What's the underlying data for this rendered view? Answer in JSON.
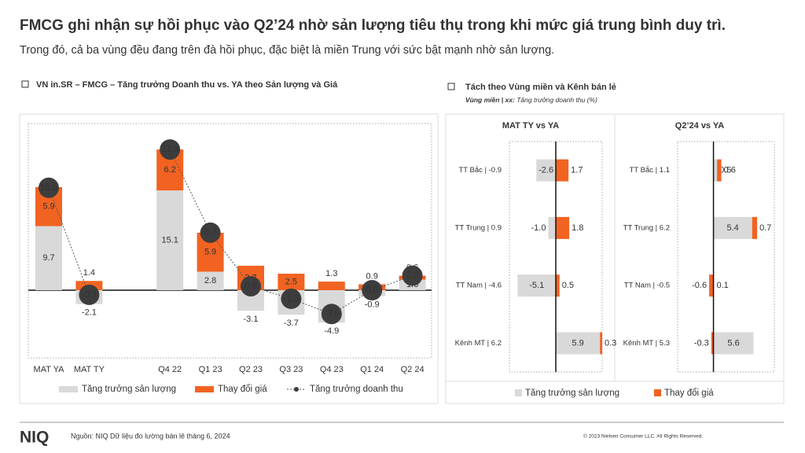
{
  "header": {
    "title": "FMCG ghi nhận sự hồi phục vào Q2’24 nhờ sản lượng tiêu thụ trong khi mức giá trung bình duy trì.",
    "subtitle": "Trong đó, cả ba vùng đều đang trên đà hồi phục, đặc biệt là miền Trung với sức bật mạnh nhờ sản lượng."
  },
  "left_section": {
    "title": "VN in.SR – FMCG – Tăng trưởng Doanh thu vs. YA theo Sản lượng và Giá"
  },
  "right_section": {
    "title": "Tách theo Vùng miền và Kênh bán lẻ",
    "note_label": "Vùng miền | xx:",
    "note_text": "Tăng trưởng doanh thu (%)"
  },
  "chart_data": [
    {
      "type": "bar",
      "stacked": true,
      "ylim": [
        -10,
        25
      ],
      "categories": [
        "MAT YA",
        "MAT TY",
        null,
        "Q4 22",
        "Q1 23",
        "Q2 23",
        "Q3 23",
        "Q4 23",
        "Q1 24",
        "Q2 24"
      ],
      "series": [
        {
          "name": "Tăng trưởng sản lượng",
          "color": "#d9d9d9",
          "values": [
            9.7,
            -2.1,
            null,
            15.1,
            2.8,
            -3.1,
            -3.7,
            -4.9,
            -0.9,
            1.6
          ]
        },
        {
          "name": "Thay đổi giá",
          "color": "#f26322",
          "values": [
            5.9,
            1.4,
            null,
            6.2,
            5.9,
            3.7,
            2.5,
            1.3,
            0.9,
            0.6
          ]
        },
        {
          "name": "Tăng trưởng doanh thu",
          "color": "#3d3d3d",
          "type": "line",
          "values": [
            15.5,
            -0.7,
            null,
            21.3,
            8.7,
            0.6,
            -1.3,
            -3.6,
            0.0,
            2.2
          ],
          "value_labels": [
            "15.5",
            "-0.7",
            null,
            "21.3",
            "8.7",
            "0.6",
            "-1.3",
            "-3.6",
            "0.0",
            "2.2"
          ]
        }
      ]
    },
    {
      "type": "hbar",
      "stacked": true,
      "title": "MAT TY vs YA",
      "xlim": [
        -6.2,
        6.2
      ],
      "categories": [
        "TT Bắc | -0.9",
        "TT Trung | 0.9",
        "TT Nam | -4.6",
        "Kênh MT | 6.2"
      ],
      "series": [
        {
          "name": "Tăng trưởng sản lượng",
          "color": "#d9d9d9",
          "values": [
            -2.6,
            -1.0,
            -5.1,
            5.9
          ],
          "value_labels": [
            "-2.6",
            "-1.0",
            "-5.1",
            "5.9"
          ]
        },
        {
          "name": "Thay đổi giá",
          "color": "#f26322",
          "values": [
            1.7,
            1.8,
            0.5,
            0.3
          ]
        }
      ]
    },
    {
      "type": "hbar",
      "stacked": true,
      "title": "Q2’24 vs YA",
      "xlim": [
        -5,
        8.5
      ],
      "categories": [
        "TT Bắc | 1.1",
        "TT Trung | 6.2",
        "TT Nam | -0.5",
        "Kênh MT | 5.3"
      ],
      "series": [
        {
          "color": "#d9d9d9",
          "values": [
            0.5,
            5.4,
            0.1,
            5.6
          ]
        },
        {
          "color": "#f26322",
          "values": [
            0.6,
            0.7,
            -0.6,
            -0.3
          ]
        }
      ]
    }
  ],
  "footer": {
    "logo": "NIQ",
    "source": "Nguồn: NIQ Dữ liệu đo lường bán lẻ tháng 6, 2024",
    "copyright": "© 2023 Nielsen Consumer LLC. All Rights Reserved."
  }
}
